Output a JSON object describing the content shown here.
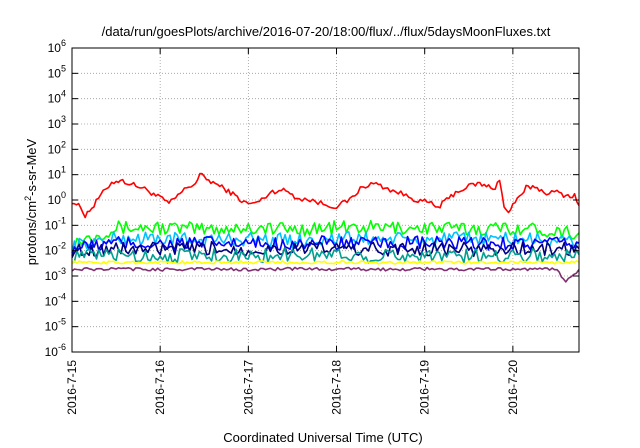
{
  "chart_data": {
    "type": "line",
    "title": "/data/run/goesPlots/archive/2016-07-20/18:00/flux/../flux/5daysMoonFluxes.txt",
    "xlabel": "Coordinated Universal Time (UTC)",
    "ylabel_parts": [
      "protons/cm",
      "2",
      "-s-sr-MeV"
    ],
    "y_scale": "log",
    "ylim": [
      1e-06,
      1000000.0
    ],
    "xlim_days": [
      0,
      5.75
    ],
    "x_ticks": [
      {
        "day": 0,
        "label": "2016-7-15"
      },
      {
        "day": 1,
        "label": "2016-7-16"
      },
      {
        "day": 2,
        "label": "2016-7-17"
      },
      {
        "day": 3,
        "label": "2016-7-18"
      },
      {
        "day": 4,
        "label": "2016-7-19"
      },
      {
        "day": 5,
        "label": "2016-7-20"
      }
    ],
    "y_ticks": [
      {
        "exp": -6,
        "base": "10",
        "sup": "-6"
      },
      {
        "exp": -5,
        "base": "10",
        "sup": "-5"
      },
      {
        "exp": -4,
        "base": "10",
        "sup": "-4"
      },
      {
        "exp": -3,
        "base": "10",
        "sup": "-3"
      },
      {
        "exp": -2,
        "base": "10",
        "sup": "-2"
      },
      {
        "exp": -1,
        "base": "10",
        "sup": "-1"
      },
      {
        "exp": 0,
        "base": "10",
        "sup": "0"
      },
      {
        "exp": 1,
        "base": "10",
        "sup": "1"
      },
      {
        "exp": 2,
        "base": "10",
        "sup": "2"
      },
      {
        "exp": 3,
        "base": "10",
        "sup": "3"
      },
      {
        "exp": 4,
        "base": "10",
        "sup": "4"
      },
      {
        "exp": 5,
        "base": "10",
        "sup": "5"
      },
      {
        "exp": 6,
        "base": "10",
        "sup": "6"
      }
    ],
    "grid": true,
    "series": [
      {
        "color": "#ff0000",
        "x": [
          0,
          0.1,
          0.15,
          0.2,
          0.25,
          0.3,
          0.38,
          0.45,
          0.55,
          0.65,
          0.75,
          0.85,
          0.95,
          1.05,
          1.1,
          1.2,
          1.3,
          1.4,
          1.45,
          1.55,
          1.65,
          1.75,
          1.85,
          1.95,
          2.05,
          2.15,
          2.25,
          2.35,
          2.45,
          2.55,
          2.7,
          2.85,
          3.0,
          3.15,
          3.3,
          3.45,
          3.55,
          3.7,
          3.85,
          3.95,
          4.05,
          4.15,
          4.25,
          4.35,
          4.5,
          4.6,
          4.7,
          4.8,
          4.85,
          4.9,
          4.95,
          5.0,
          5.05,
          5.1,
          5.15,
          5.25,
          5.35,
          5.5,
          5.6,
          5.7,
          5.75
        ],
        "y": [
          0.9,
          0.5,
          0.25,
          0.4,
          0.6,
          1.2,
          2.5,
          5,
          6,
          4.5,
          3.5,
          2.5,
          1.5,
          1.0,
          0.7,
          1.5,
          3,
          4.5,
          10,
          6,
          4,
          2.5,
          1.5,
          0.8,
          0.7,
          1.0,
          2,
          2.5,
          2.2,
          1.2,
          1.0,
          0.7,
          0.55,
          1.0,
          3.5,
          4.5,
          3.0,
          2.0,
          1.2,
          0.9,
          0.8,
          0.5,
          1.0,
          2,
          3.5,
          4.5,
          3.5,
          3.0,
          7,
          0.5,
          0.3,
          0.7,
          1.0,
          1.5,
          3,
          3.5,
          2.0,
          2.0,
          1.5,
          1.5,
          0.6
        ]
      },
      {
        "color": "#00ff00",
        "x": [
          0,
          0.5,
          1,
          1.5,
          2,
          2.5,
          3,
          3.5,
          4,
          4.5,
          5,
          5.5,
          5.75
        ],
        "y": [
          0.02,
          0.08,
          0.08,
          0.07,
          0.08,
          0.07,
          0.08,
          0.08,
          0.08,
          0.07,
          0.08,
          0.06,
          0.05
        ]
      },
      {
        "color": "#00c0ff",
        "x": [
          0,
          0.5,
          1,
          1.5,
          2,
          2.5,
          3,
          3.5,
          4,
          4.5,
          5,
          5.5,
          5.75
        ],
        "y": [
          0.015,
          0.03,
          0.03,
          0.025,
          0.03,
          0.025,
          0.03,
          0.03,
          0.025,
          0.03,
          0.03,
          0.025,
          0.02
        ]
      },
      {
        "color": "#0000ff",
        "x": [
          0,
          0.5,
          1,
          1.5,
          2,
          2.5,
          3,
          3.5,
          4,
          4.5,
          5,
          5.5,
          5.75
        ],
        "y": [
          0.012,
          0.02,
          0.018,
          0.02,
          0.018,
          0.02,
          0.02,
          0.018,
          0.02,
          0.018,
          0.02,
          0.018,
          0.02
        ]
      },
      {
        "color": "#000080",
        "x": [
          0,
          0.5,
          1,
          1.5,
          2,
          2.5,
          3,
          3.5,
          4,
          4.5,
          5,
          5.5,
          5.75
        ],
        "y": [
          0.01,
          0.012,
          0.011,
          0.012,
          0.011,
          0.012,
          0.012,
          0.011,
          0.012,
          0.011,
          0.012,
          0.011,
          0.012
        ]
      },
      {
        "color": "#00a090",
        "x": [
          0,
          0.5,
          1,
          1.5,
          2,
          2.5,
          3,
          3.5,
          4,
          4.5,
          5,
          5.5,
          5.75
        ],
        "y": [
          0.006,
          0.007,
          0.006,
          0.007,
          0.006,
          0.007,
          0.007,
          0.006,
          0.007,
          0.006,
          0.007,
          0.006,
          0.007
        ]
      },
      {
        "color": "#ffff00",
        "x": [
          0,
          0.5,
          1,
          1.5,
          2,
          2.5,
          3,
          3.5,
          4,
          4.5,
          5,
          5.5,
          5.75
        ],
        "y": [
          0.0035,
          0.0034,
          0.0035,
          0.0034,
          0.0035,
          0.0034,
          0.0035,
          0.0034,
          0.0035,
          0.0034,
          0.0035,
          0.0034,
          0.0035
        ]
      },
      {
        "color": "#803070",
        "x": [
          0,
          0.5,
          1,
          1.5,
          2,
          2.5,
          3,
          3.5,
          4,
          4.5,
          5,
          5.5,
          5.6,
          5.75
        ],
        "y": [
          0.0018,
          0.0019,
          0.0018,
          0.0019,
          0.0018,
          0.0019,
          0.0019,
          0.0018,
          0.0019,
          0.0018,
          0.0019,
          0.0018,
          0.0006,
          0.0018
        ]
      }
    ]
  }
}
